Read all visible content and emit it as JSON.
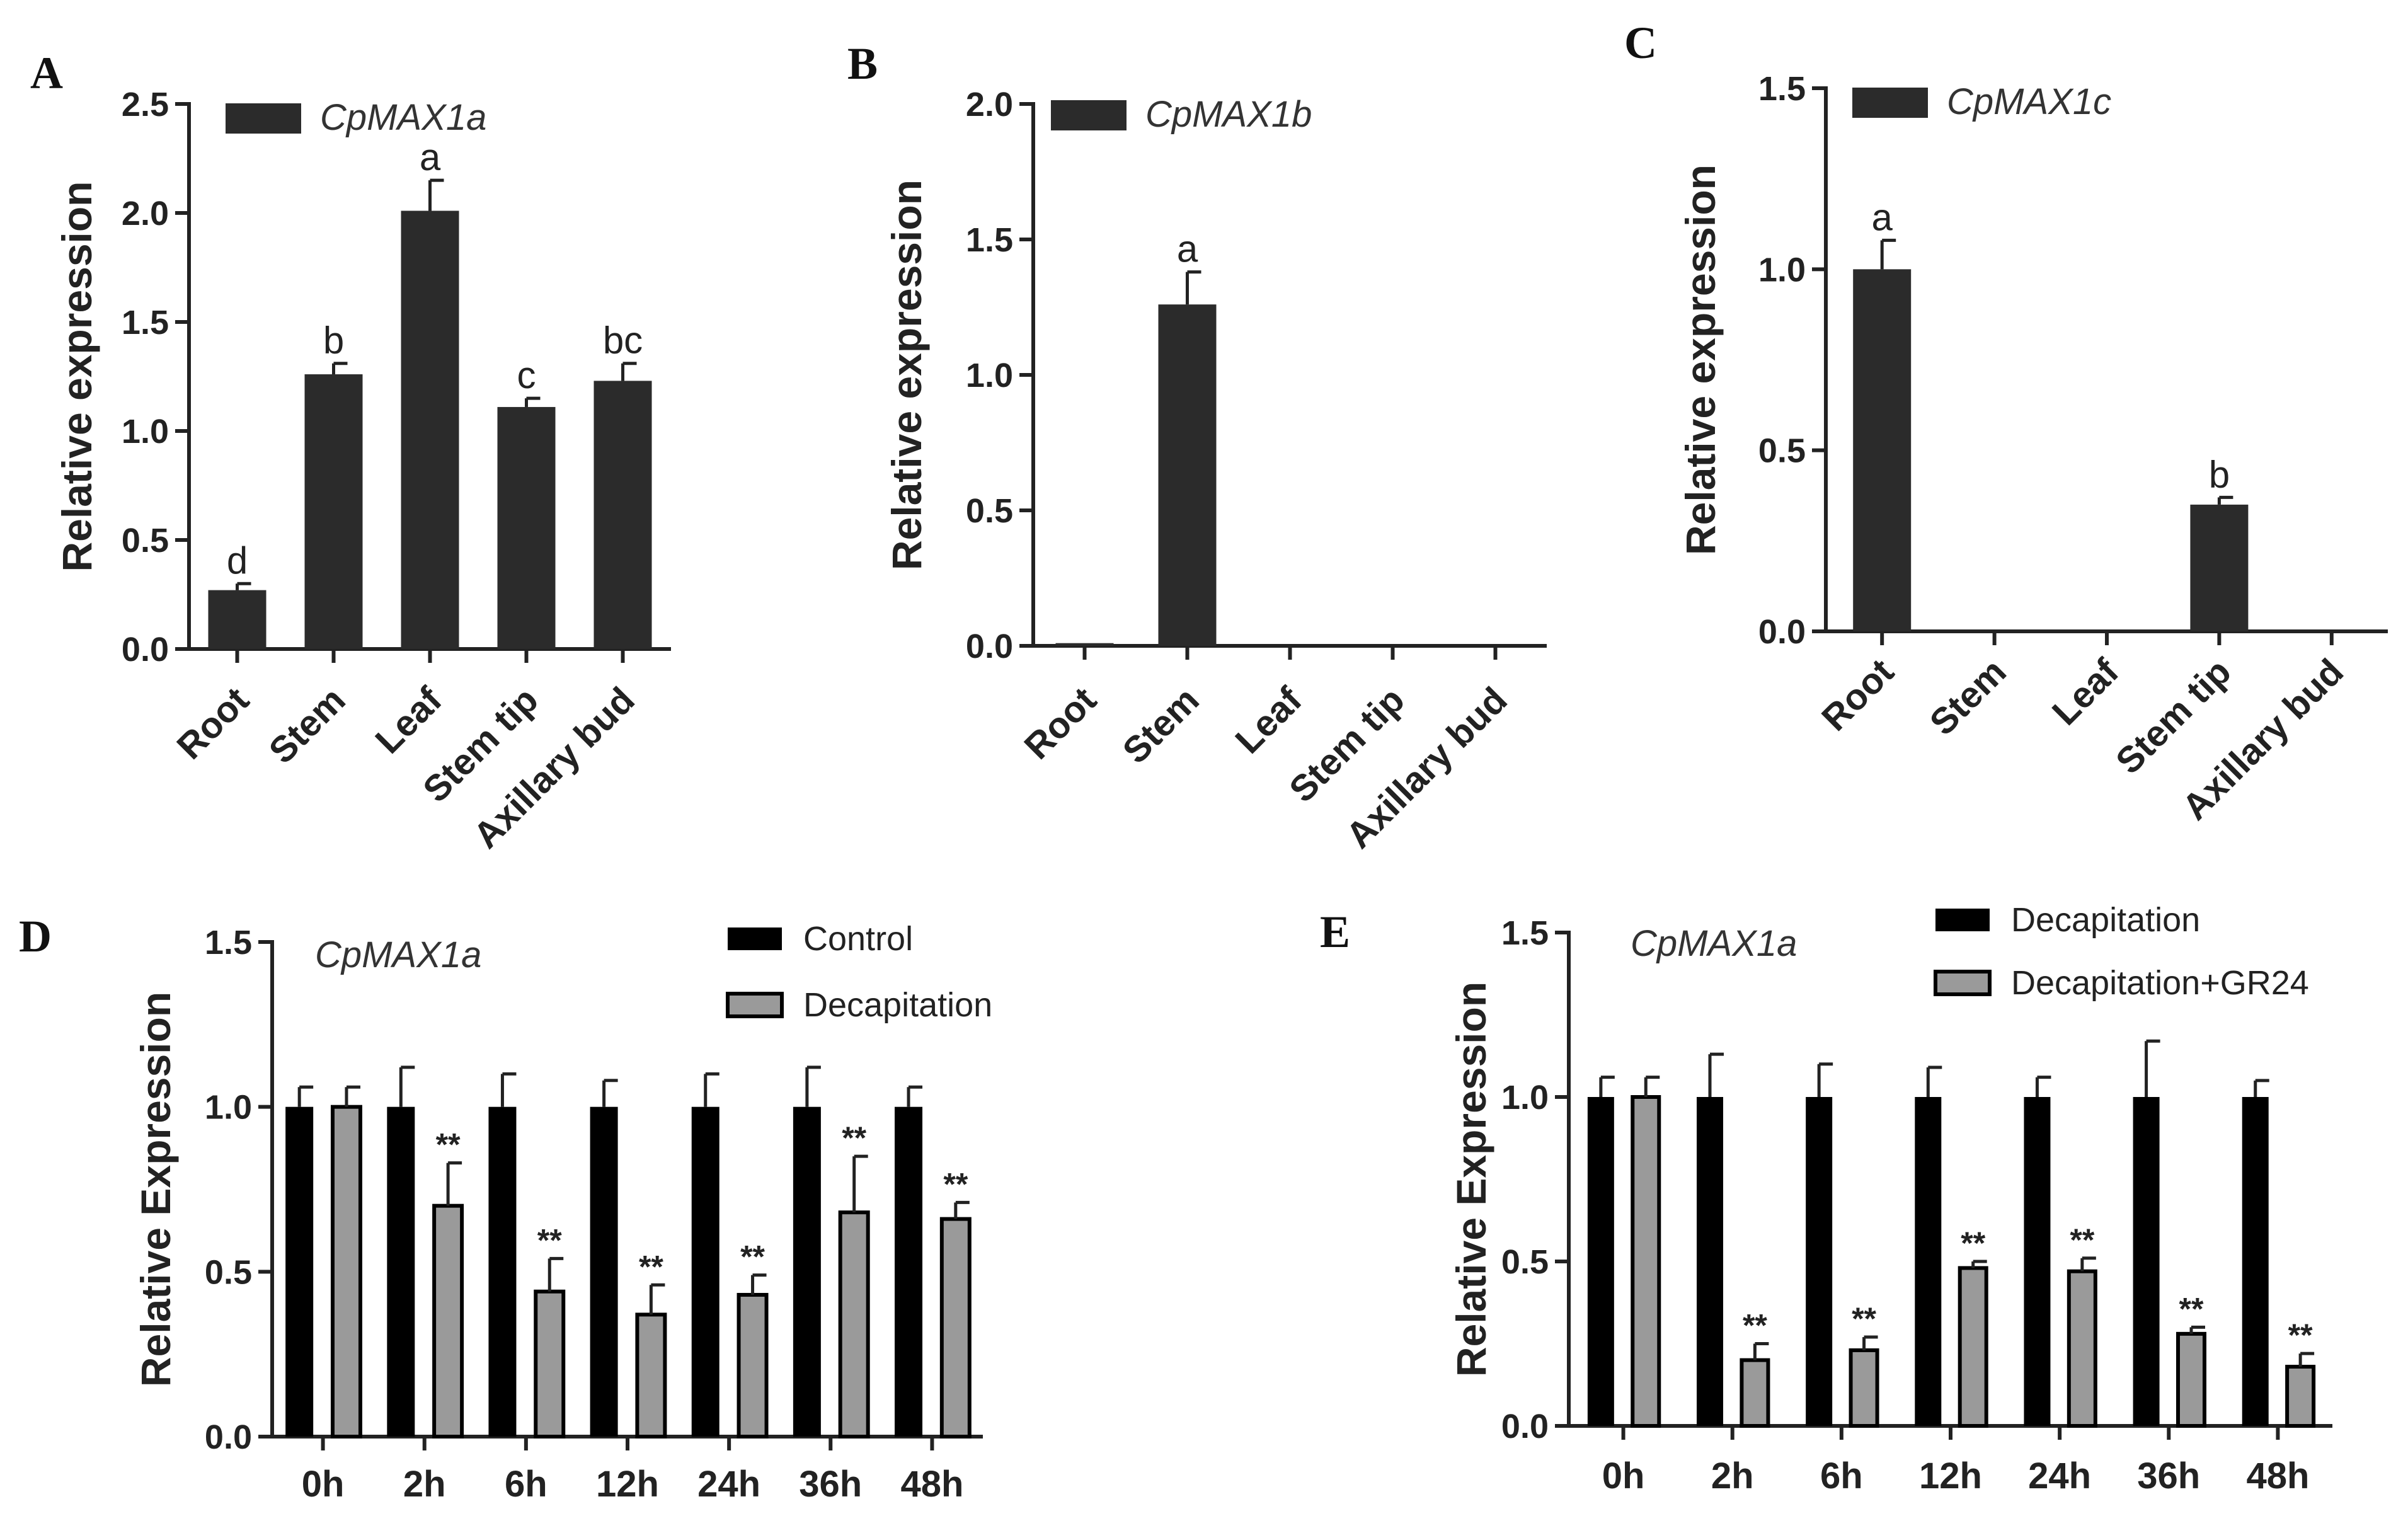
{
  "colors": {
    "bar_dark": "#2b2b2b",
    "bar_black": "#000000",
    "bar_gray": "#9a9a9a",
    "axis": "#222222"
  },
  "chart_data": [
    {
      "panel": "A",
      "type": "bar",
      "legend": [
        "CpMAX1a"
      ],
      "categories": [
        "Root",
        "Stem",
        "Leaf",
        "Stem tip",
        "Axillary bud"
      ],
      "values": [
        0.27,
        1.26,
        2.01,
        1.11,
        1.23
      ],
      "errors": [
        0.03,
        0.05,
        0.14,
        0.04,
        0.08
      ],
      "letters": [
        "d",
        "b",
        "a",
        "c",
        "bc"
      ],
      "ylabel": "Relative  expression",
      "ylim": [
        0,
        2.5
      ],
      "yticks": [
        "0.0",
        "0.5",
        "1.0",
        "1.5",
        "2.0",
        "2.5"
      ]
    },
    {
      "panel": "B",
      "type": "bar",
      "legend": [
        "CpMAX1b"
      ],
      "categories": [
        "Root",
        "Stem",
        "Leaf",
        "Stem tip",
        "Axillary bud"
      ],
      "values": [
        0.01,
        1.26,
        0,
        0,
        0
      ],
      "errors": [
        0,
        0.12,
        0,
        0,
        0
      ],
      "letters": [
        "",
        "a",
        "",
        "",
        ""
      ],
      "ylabel": "Relative  expression",
      "ylim": [
        0,
        2.0
      ],
      "yticks": [
        "0.0",
        "0.5",
        "1.0",
        "1.5",
        "2.0"
      ]
    },
    {
      "panel": "C",
      "type": "bar",
      "legend": [
        "CpMAX1c"
      ],
      "categories": [
        "Root",
        "Stem",
        "Leaf",
        "Stem tip",
        "Axillary bud"
      ],
      "values": [
        1.0,
        0,
        0,
        0.35,
        0
      ],
      "errors": [
        0.08,
        0,
        0,
        0.02,
        0
      ],
      "letters": [
        "a",
        "",
        "",
        "b",
        ""
      ],
      "ylabel": "Relative  expression",
      "ylim": [
        0,
        1.5
      ],
      "yticks": [
        "0.0",
        "0.5",
        "1.0",
        "1.5"
      ]
    },
    {
      "panel": "D",
      "type": "bar",
      "title": "CpMAX1a",
      "categories": [
        "0h",
        "2h",
        "6h",
        "12h",
        "24h",
        "36h",
        "48h"
      ],
      "series": [
        {
          "name": "Control",
          "values": [
            1.0,
            1.0,
            1.0,
            1.0,
            1.0,
            1.0,
            1.0
          ],
          "errors": [
            0.06,
            0.12,
            0.1,
            0.08,
            0.1,
            0.12,
            0.06
          ],
          "marks": [
            "",
            "",
            "",
            "",
            "",
            "",
            ""
          ]
        },
        {
          "name": "Decapitation",
          "values": [
            1.0,
            0.7,
            0.44,
            0.37,
            0.43,
            0.68,
            0.66
          ],
          "errors": [
            0.06,
            0.13,
            0.1,
            0.09,
            0.06,
            0.17,
            0.05
          ],
          "marks": [
            "",
            "**",
            "**",
            "**",
            "**",
            "**",
            "**"
          ]
        }
      ],
      "ylabel": "Relative Expression",
      "ylim": [
        0,
        1.5
      ],
      "yticks": [
        "0.0",
        "0.5",
        "1.0",
        "1.5"
      ]
    },
    {
      "panel": "E",
      "type": "bar",
      "title": "CpMAX1a",
      "categories": [
        "0h",
        "2h",
        "6h",
        "12h",
        "24h",
        "36h",
        "48h"
      ],
      "series": [
        {
          "name": "Decapitation",
          "values": [
            1.0,
            1.0,
            1.0,
            1.0,
            1.0,
            1.0,
            1.0
          ],
          "errors": [
            0.06,
            0.13,
            0.1,
            0.09,
            0.06,
            0.17,
            0.05
          ],
          "marks": [
            "",
            "",
            "",
            "",
            "",
            "",
            ""
          ]
        },
        {
          "name": "Decapitation+GR24",
          "values": [
            1.0,
            0.2,
            0.23,
            0.48,
            0.47,
            0.28,
            0.18
          ],
          "errors": [
            0.06,
            0.05,
            0.04,
            0.02,
            0.04,
            0.02,
            0.04
          ],
          "marks": [
            "",
            "**",
            "**",
            "**",
            "**",
            "**",
            "**"
          ]
        }
      ],
      "ylabel": "Relative Expression",
      "ylim": [
        0,
        1.5
      ],
      "yticks": [
        "0.0",
        "0.5",
        "1.0",
        "1.5"
      ]
    }
  ]
}
